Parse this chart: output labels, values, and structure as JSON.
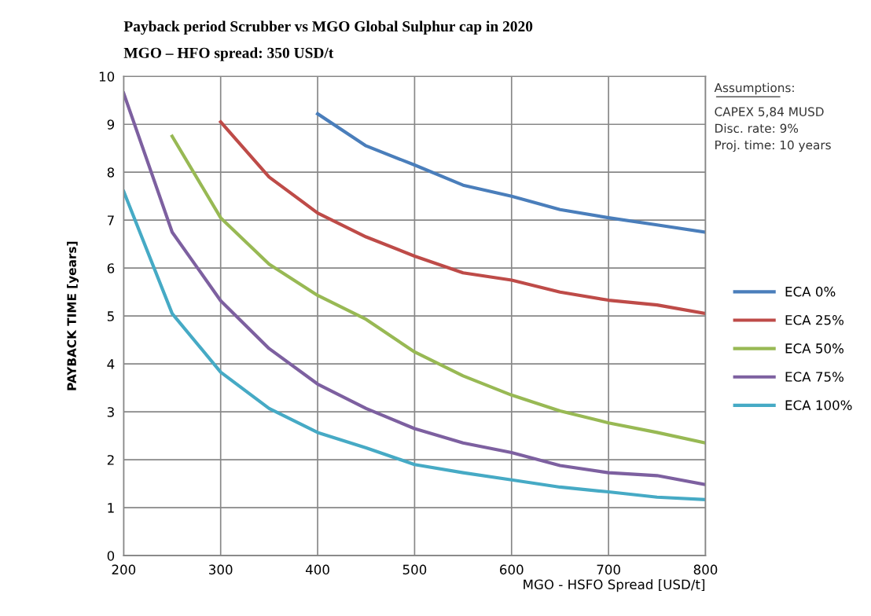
{
  "chart_data": {
    "type": "line",
    "title": "Payback period Scrubber vs MGO Global Sulphur cap in 2020",
    "subtitle": "MGO – HFO spread: 350 USD/t",
    "xlabel": "MGO - HSFO Spread [USD/t]",
    "ylabel": "PAYBACK TIME [years]",
    "annotations": [
      "Assumptions:",
      "CAPEX 5,84 MUSD",
      "Disc. rate: 9%",
      "Proj. time: 10 years"
    ],
    "xlim": [
      200,
      800
    ],
    "xticks": [
      200,
      300,
      400,
      500,
      600,
      700,
      800
    ],
    "ylim": [
      0,
      10
    ],
    "yticks": [
      0,
      1,
      2,
      3,
      4,
      5,
      6,
      7,
      8,
      9,
      10
    ],
    "grid": true,
    "legend": "right",
    "marker": "none",
    "line_style": "solid",
    "series": [
      {
        "name": "ECA 0%",
        "color": "#4a7ebb",
        "x": [
          400,
          450,
          500,
          550,
          600,
          650,
          700,
          750,
          800
        ],
        "values": [
          9.22,
          8.55,
          8.15,
          7.73,
          7.5,
          7.22,
          7.05,
          6.9,
          6.75
        ]
      },
      {
        "name": "ECA 25%",
        "color": "#be4b48",
        "x": [
          300,
          350,
          400,
          450,
          500,
          550,
          600,
          650,
          700,
          750,
          800
        ],
        "values": [
          9.05,
          7.9,
          7.15,
          6.65,
          6.25,
          5.9,
          5.75,
          5.5,
          5.33,
          5.23,
          5.05
        ]
      },
      {
        "name": "ECA 50%",
        "color": "#98b954",
        "x": [
          250,
          300,
          350,
          400,
          450,
          500,
          550,
          600,
          650,
          700,
          750,
          800
        ],
        "values": [
          8.75,
          7.05,
          6.08,
          5.43,
          4.93,
          4.25,
          3.75,
          3.35,
          3.02,
          2.77,
          2.57,
          2.35
        ]
      },
      {
        "name": "ECA 75%",
        "color": "#7d60a0",
        "x": [
          200,
          250,
          300,
          350,
          400,
          450,
          500,
          550,
          600,
          650,
          700,
          750,
          800
        ],
        "values": [
          9.65,
          6.75,
          5.32,
          4.32,
          3.58,
          3.07,
          2.65,
          2.35,
          2.15,
          1.88,
          1.73,
          1.67,
          1.48
        ]
      },
      {
        "name": "ECA 100%",
        "color": "#46aac5",
        "x": [
          200,
          250,
          300,
          350,
          400,
          450,
          500,
          550,
          600,
          650,
          700,
          750,
          800
        ],
        "values": [
          7.6,
          5.05,
          3.83,
          3.07,
          2.57,
          2.25,
          1.9,
          1.73,
          1.58,
          1.43,
          1.33,
          1.22,
          1.17
        ]
      }
    ]
  }
}
